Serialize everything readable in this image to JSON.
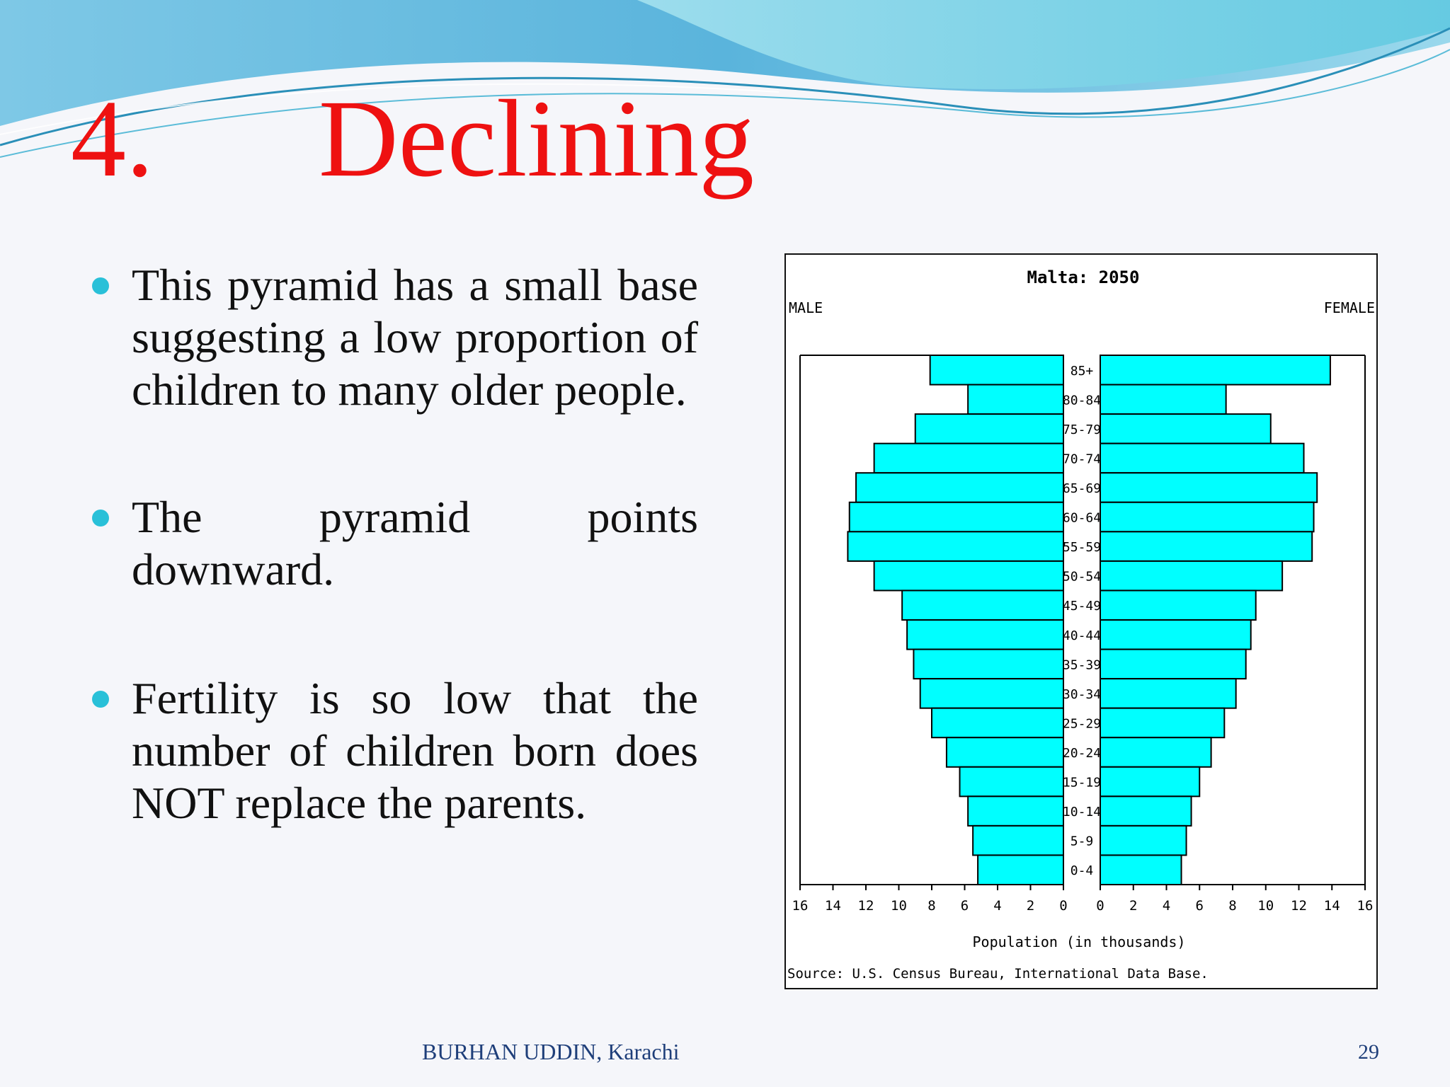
{
  "slide": {
    "title_number": "4.",
    "title_text": "Declining",
    "bullets": [
      "This pyramid has a small base suggesting a low proportion of children to many older people.",
      "The pyramid points downward.",
      "Fertility is so low that the number of children born does NOT replace the parents."
    ],
    "footer_author": "BURHAN UDDIN, Karachi",
    "page_number": "29",
    "accent_color": "#ee1111",
    "bullet_color": "#29c0d8"
  },
  "chart_data": {
    "type": "bar",
    "orientation": "horizontal-pyramid",
    "title": "Malta: 2050",
    "left_label": "MALE",
    "right_label": "FEMALE",
    "xlabel": "Population (in thousands)",
    "source": "Source: U.S. Census Bureau, International Data Base.",
    "xlim": [
      0,
      16
    ],
    "x_ticks_left": [
      "16",
      "14",
      "12",
      "10",
      "8",
      "6",
      "4",
      "2",
      "0"
    ],
    "x_ticks_right": [
      "0",
      "2",
      "4",
      "6",
      "8",
      "10",
      "12",
      "14",
      "16"
    ],
    "bar_color": "#00ffff",
    "categories": [
      "85+",
      "80-84",
      "75-79",
      "70-74",
      "65-69",
      "60-64",
      "55-59",
      "50-54",
      "45-49",
      "40-44",
      "35-39",
      "30-34",
      "25-29",
      "20-24",
      "15-19",
      "10-14",
      "5-9",
      "0-4"
    ],
    "series": [
      {
        "name": "MALE",
        "values": [
          8.1,
          5.8,
          9.0,
          11.5,
          12.6,
          13.0,
          13.1,
          11.5,
          9.8,
          9.5,
          9.1,
          8.7,
          8.0,
          7.1,
          6.3,
          5.8,
          5.5,
          5.2
        ]
      },
      {
        "name": "FEMALE",
        "values": [
          13.9,
          7.6,
          10.3,
          12.3,
          13.1,
          12.9,
          12.8,
          11.0,
          9.4,
          9.1,
          8.8,
          8.2,
          7.5,
          6.7,
          6.0,
          5.5,
          5.2,
          4.9
        ]
      }
    ]
  }
}
